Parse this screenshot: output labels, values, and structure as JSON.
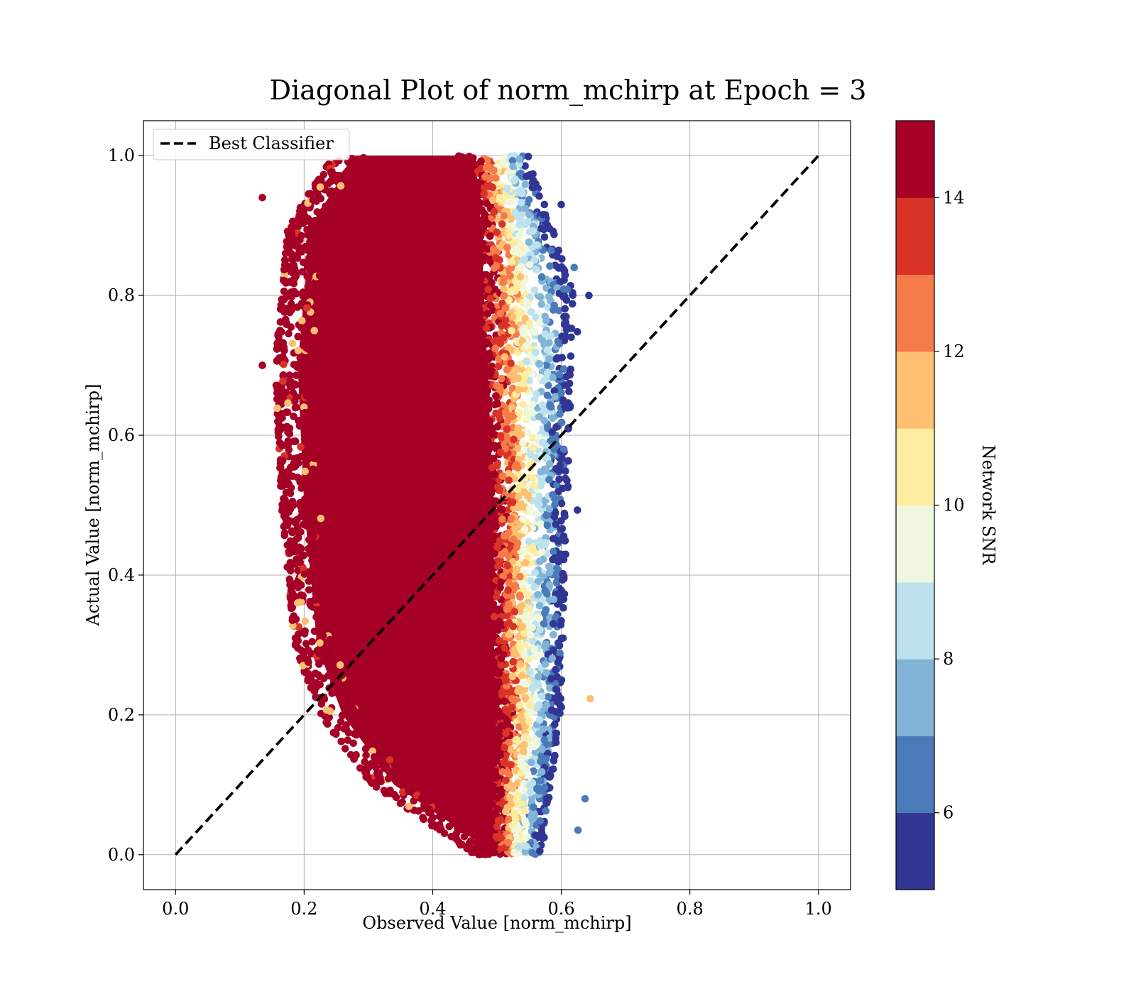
{
  "chart_data": {
    "type": "scatter",
    "title": "Diagonal Plot of norm_mchirp at Epoch = 3",
    "xlabel": "Observed Value [norm_mchirp]",
    "ylabel": "Actual Value [norm_mchirp]",
    "xlim": [
      -0.05,
      1.05
    ],
    "ylim": [
      -0.05,
      1.05
    ],
    "xticks": [
      0.0,
      0.2,
      0.4,
      0.6,
      0.8,
      1.0
    ],
    "yticks": [
      0.0,
      0.2,
      0.4,
      0.6,
      0.8,
      1.0
    ],
    "xtick_labels": [
      "0.0",
      "0.2",
      "0.4",
      "0.6",
      "0.8",
      "1.0"
    ],
    "ytick_labels": [
      "0.0",
      "0.2",
      "0.4",
      "0.6",
      "0.8",
      "1.0"
    ],
    "grid": true,
    "legend": {
      "placement": "top-left",
      "entries": [
        {
          "label": "Best Classifier",
          "style": "black-dashed-line"
        }
      ]
    },
    "reference_line": {
      "name": "Best Classifier",
      "x": [
        0.0,
        1.0
      ],
      "y": [
        0.0,
        1.0
      ],
      "color": "#000000"
    },
    "colorbar": {
      "label": "Network SNR",
      "range": [
        5,
        15
      ],
      "ticks": [
        6,
        8,
        10,
        12,
        14
      ],
      "tick_labels": [
        "6",
        "8",
        "10",
        "12",
        "14"
      ],
      "levels": [
        {
          "from": 5,
          "to": 6,
          "color": "#313695"
        },
        {
          "from": 6,
          "to": 7,
          "color": "#4a7ab7"
        },
        {
          "from": 7,
          "to": 8,
          "color": "#81b4d6"
        },
        {
          "from": 8,
          "to": 9,
          "color": "#bde2ee"
        },
        {
          "from": 9,
          "to": 10,
          "color": "#eff8df"
        },
        {
          "from": 10,
          "to": 11,
          "color": "#feeda1"
        },
        {
          "from": 11,
          "to": 12,
          "color": "#fdbf71"
        },
        {
          "from": 12,
          "to": 13,
          "color": "#f57b4a"
        },
        {
          "from": 13,
          "to": 14,
          "color": "#d93328"
        },
        {
          "from": 14,
          "to": 15,
          "color": "#a50026"
        }
      ]
    },
    "point_cloud": {
      "description_of_distribution": "dense cloud; high-SNR core, low-SNR points on right edge",
      "y_range": [
        0.0,
        1.0
      ],
      "left_edge_x_at_y": [
        [
          0.0,
          0.48
        ],
        [
          0.1,
          0.32
        ],
        [
          0.2,
          0.24
        ],
        [
          0.3,
          0.2
        ],
        [
          0.5,
          0.18
        ],
        [
          0.7,
          0.17
        ],
        [
          0.9,
          0.19
        ],
        [
          1.0,
          0.26
        ]
      ],
      "core_right_edge_x_at_y": [
        [
          0.0,
          0.5
        ],
        [
          0.1,
          0.5
        ],
        [
          0.2,
          0.51
        ],
        [
          0.3,
          0.5
        ],
        [
          0.5,
          0.5
        ],
        [
          0.7,
          0.49
        ],
        [
          0.9,
          0.48
        ],
        [
          1.0,
          0.47
        ]
      ],
      "outer_right_edge_x_at_y": [
        [
          0.0,
          0.57
        ],
        [
          0.2,
          0.6
        ],
        [
          0.5,
          0.61
        ],
        [
          0.8,
          0.62
        ],
        [
          1.0,
          0.55
        ]
      ],
      "outliers": [
        {
          "x": 0.135,
          "y": 0.94,
          "snr": 14.5
        },
        {
          "x": 0.135,
          "y": 0.7,
          "snr": 14.5
        },
        {
          "x": 0.6,
          "y": 0.93,
          "snr": 5.5
        },
        {
          "x": 0.643,
          "y": 0.8,
          "snr": 5.5
        },
        {
          "x": 0.645,
          "y": 0.223,
          "snr": 11.5
        },
        {
          "x": 0.637,
          "y": 0.08,
          "snr": 6.5
        },
        {
          "x": 0.626,
          "y": 0.035,
          "snr": 6.5
        },
        {
          "x": 0.62,
          "y": 0.84,
          "snr": 6.5
        },
        {
          "x": 0.625,
          "y": 0.748,
          "snr": 5.5
        },
        {
          "x": 0.625,
          "y": 0.493,
          "snr": 5.5
        },
        {
          "x": 0.225,
          "y": 0.955,
          "snr": 11.5
        },
        {
          "x": 0.19,
          "y": 0.36,
          "snr": 11.5
        }
      ]
    }
  }
}
